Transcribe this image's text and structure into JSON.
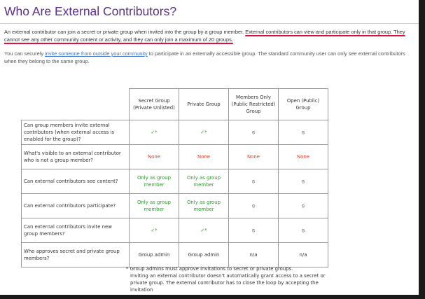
{
  "header": {
    "title": "Who Are External Contributors?"
  },
  "intro": {
    "plain": "An external contributor can join a secret or private group when invited into the group by a group member. ",
    "highlight": "External contributors can view and participate only in that group. They cannot see any other community content or activity, and they can only join a maximum of 20 groups."
  },
  "secondary": {
    "before": "You can securely ",
    "link": "invite someone from outside your community",
    "after": " to participate in an externally accessible group. The standard community user can only see external contributors when they belong to the same group."
  },
  "table": {
    "columns": [
      "Secret Group (Private Unlisted)",
      "Private Group",
      "Members Only (Public Restricted) Group",
      "Open (Public) Group"
    ],
    "rows": [
      {
        "question": "Can group members invite external contributors (when external access is enabled for the group)?",
        "cells": [
          {
            "text": "✓*",
            "color": "#2a9a2a"
          },
          {
            "text": "✓*",
            "color": "#2a9a2a"
          },
          {
            "text": "⦸",
            "color": "#333333"
          },
          {
            "text": "⦸",
            "color": "#333333"
          }
        ]
      },
      {
        "question": "What's visible to an external contributor who is not a group member?",
        "cells": [
          {
            "text": "None",
            "color": "#e23b22"
          },
          {
            "text": "None",
            "color": "#e23b22"
          },
          {
            "text": "None",
            "color": "#e23b22"
          },
          {
            "text": "None",
            "color": "#e23b22"
          }
        ]
      },
      {
        "question": "Can external contributors see content?",
        "cells": [
          {
            "text": "Only as group member",
            "color": "#2a9a2a"
          },
          {
            "text": "Only as group member",
            "color": "#2a9a2a"
          },
          {
            "text": "⦸",
            "color": "#333333"
          },
          {
            "text": "⦸",
            "color": "#333333"
          }
        ]
      },
      {
        "question": "Can external contributors participate?",
        "cells": [
          {
            "text": "Only as group member",
            "color": "#2a9a2a"
          },
          {
            "text": "Only as group member",
            "color": "#2a9a2a"
          },
          {
            "text": "⦸",
            "color": "#333333"
          },
          {
            "text": "⦸",
            "color": "#333333"
          }
        ]
      },
      {
        "question": "Can external contributors invite new group members?",
        "cells": [
          {
            "text": "✓*",
            "color": "#2a9a2a"
          },
          {
            "text": "✓*",
            "color": "#2a9a2a"
          },
          {
            "text": "⦸",
            "color": "#333333"
          },
          {
            "text": "⦸",
            "color": "#333333"
          }
        ]
      },
      {
        "question": "Who approves secret and private group members?",
        "cells": [
          {
            "text": "Group admin",
            "color": "#333333"
          },
          {
            "text": "Group admin",
            "color": "#333333"
          },
          {
            "text": "n/a",
            "color": "#333333"
          },
          {
            "text": "n/a",
            "color": "#333333"
          }
        ]
      }
    ]
  },
  "footnotes": [
    "* Group admins must approve invitations to secret or private groups.",
    "Inviting an external contributor doesn't automatically grant access to a secret or private group. The external contributor has to close the loop by accepting the invitation"
  ]
}
